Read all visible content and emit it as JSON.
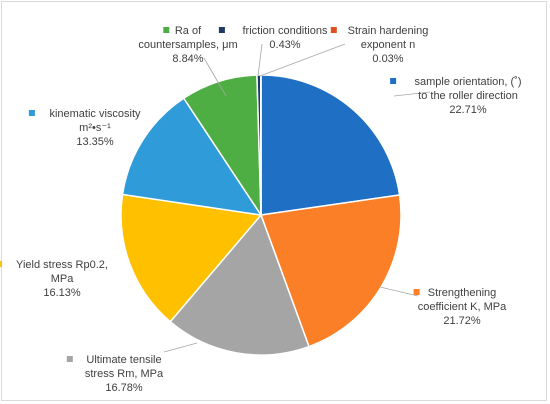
{
  "chart_data": {
    "type": "pie",
    "legend": "none",
    "slices": [
      {
        "label": [
          "sample orientation, (˚)",
          "to the roller direction"
        ],
        "value": 22.71,
        "value_label": "22.71%",
        "color": "#1f6fc5"
      },
      {
        "label": [
          "Strengthening",
          "coefficient K, MPa"
        ],
        "value": 21.72,
        "value_label": "21.72%",
        "color": "#fb7f26"
      },
      {
        "label": [
          "Ultimate tensile",
          "stress Rm, MPa"
        ],
        "value": 16.78,
        "value_label": "16.78%",
        "color": "#a5a5a5"
      },
      {
        "label": [
          "Yield stress Rp0.2,",
          "MPa"
        ],
        "value": 16.13,
        "value_label": "16.13%",
        "color": "#ffc000"
      },
      {
        "label": [
          "kinematic viscosity",
          "m²•s⁻¹"
        ],
        "value": 13.35,
        "value_label": "13.35%",
        "color": "#2f9bd8"
      },
      {
        "label": [
          "Ra of",
          "countersamples, μm"
        ],
        "value": 8.84,
        "value_label": "8.84%",
        "color": "#4eae43"
      },
      {
        "label": [
          "friction conditions"
        ],
        "value": 0.43,
        "value_label": "0.43%",
        "color": "#1f3864"
      },
      {
        "label": [
          "Strain hardening",
          "exponent n"
        ],
        "value": 0.03,
        "value_label": "0.03%",
        "color": "#e0501f"
      }
    ]
  }
}
